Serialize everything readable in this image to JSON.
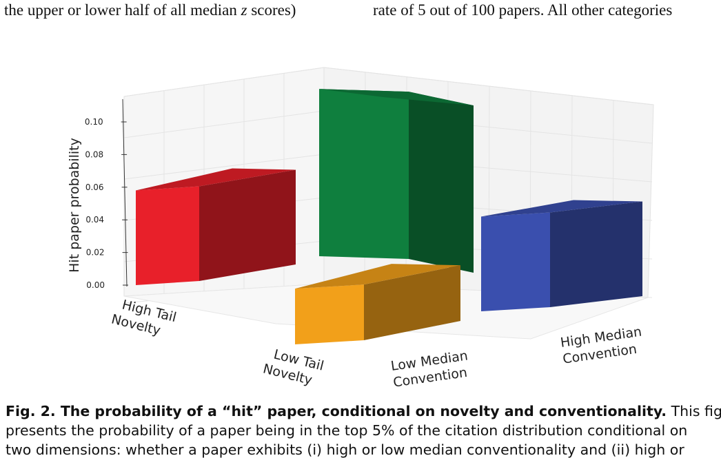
{
  "page_text": {
    "top_left": "the upper or lower half of all median z scores)",
    "top_left_pre": "the upper or lower half of all median ",
    "top_left_var": "z",
    "top_left_post": " scores)",
    "top_right": "rate of 5 out of 100 papers. All other categories",
    "caption_bold": "Fig. 2. The probability of a “hit” paper, conditional on novelty and conventionality.",
    "caption_line1_rest": " This figure",
    "caption_line2": "presents the probability of a paper being in the top 5% of the citation distribution conditional on",
    "caption_line3": "two dimensions: whether a paper exhibits (i) high or low median conventionality and (ii) high or"
  },
  "chart_data": {
    "type": "bar3d",
    "ylabel": "Hit paper probability",
    "yticks": [
      "0.00",
      "0.02",
      "0.04",
      "0.06",
      "0.08",
      "0.10"
    ],
    "ylim": [
      0,
      0.11
    ],
    "x_axis_labels": [
      "High Tail Novelty",
      "Low Tail Novelty"
    ],
    "y_axis_labels": [
      "Low Median Convention",
      "High Median Convention"
    ],
    "bars": [
      {
        "novelty": "High Tail Novelty",
        "convention": "Low Median Convention",
        "value": 0.058,
        "color": "#e8202a"
      },
      {
        "novelty": "High Tail Novelty",
        "convention": "High Median Convention",
        "value": 0.109,
        "color": "#0f7f3e"
      },
      {
        "novelty": "Low Tail Novelty",
        "convention": "Low Median Convention",
        "value": 0.022,
        "color": "#f2a01a"
      },
      {
        "novelty": "Low Tail Novelty",
        "convention": "High Median Convention",
        "value": 0.058,
        "color": "#3a4fae"
      }
    ],
    "grid": true
  }
}
